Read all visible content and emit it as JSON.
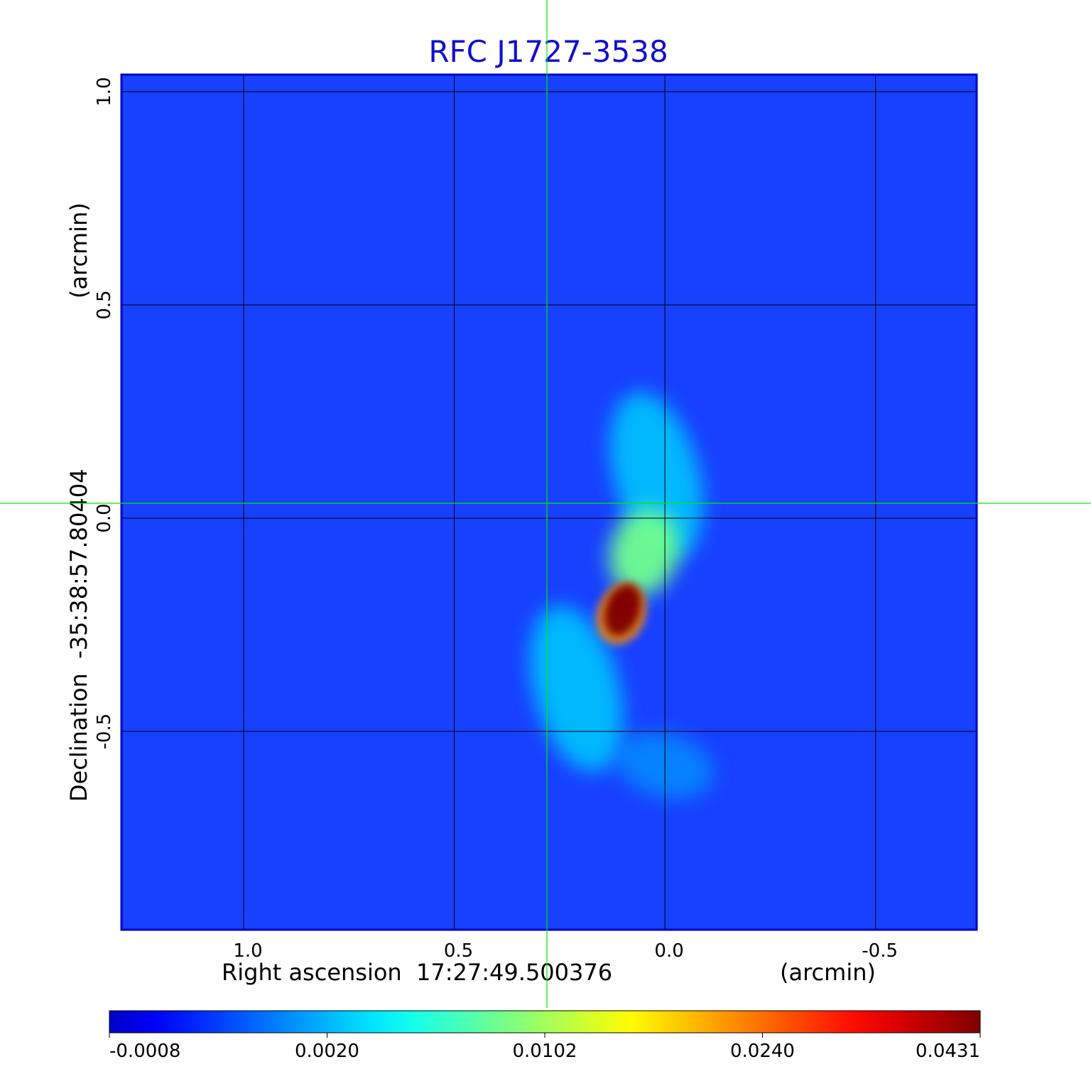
{
  "chart_data": {
    "type": "heatmap",
    "title": "RFC J1727-3538",
    "xlabel": "Right ascension  17:27:49.500376",
    "xunit": "(arcmin)",
    "ylabel": "Declination  -35:38:57.80404",
    "yunit": "(arcmin)",
    "x_axis": {
      "direction": "decreasing to the right",
      "range": [
        1.29,
        -0.74
      ],
      "ticks": [
        {
          "value": 1.0,
          "label": "1.0"
        },
        {
          "value": 0.5,
          "label": "0.5"
        },
        {
          "value": 0.0,
          "label": "0.0"
        },
        {
          "value": -0.5,
          "label": "-0.5"
        }
      ]
    },
    "y_axis": {
      "range": [
        -0.965,
        1.04
      ],
      "ticks": [
        {
          "value": 1.0,
          "label": "1.0"
        },
        {
          "value": 0.5,
          "label": "0.5"
        },
        {
          "value": 0.0,
          "label": "0.0"
        },
        {
          "value": -0.5,
          "label": "-0.5"
        }
      ]
    },
    "grid": true,
    "crosshair": {
      "x": 0.28,
      "y": 0.035
    },
    "colormap": "jet",
    "colorbar": {
      "placement": "bottom",
      "ticks": [
        "-0.0008",
        "0.0020",
        "0.0102",
        "0.0240",
        "0.0431"
      ]
    },
    "background_level": 0.0015,
    "features": [
      {
        "kind": "peak",
        "x": 0.1,
        "y": -0.215,
        "value": 0.0431
      },
      {
        "kind": "extended emission",
        "x": 0.05,
        "y": -0.08,
        "value": 0.011
      },
      {
        "kind": "jet",
        "x": 0.02,
        "y": 0.1,
        "value": 0.0045
      },
      {
        "kind": "jet",
        "x": 0.21,
        "y": -0.4,
        "value": 0.0045
      },
      {
        "kind": "sidelobe",
        "x": 0.0,
        "y": -0.58,
        "value": 0.0035
      }
    ]
  },
  "colors": {
    "title": "#1010d0",
    "text": "#000000",
    "crosshair": "#00ee00",
    "grid": "#000000",
    "frame": "#0000c8"
  }
}
